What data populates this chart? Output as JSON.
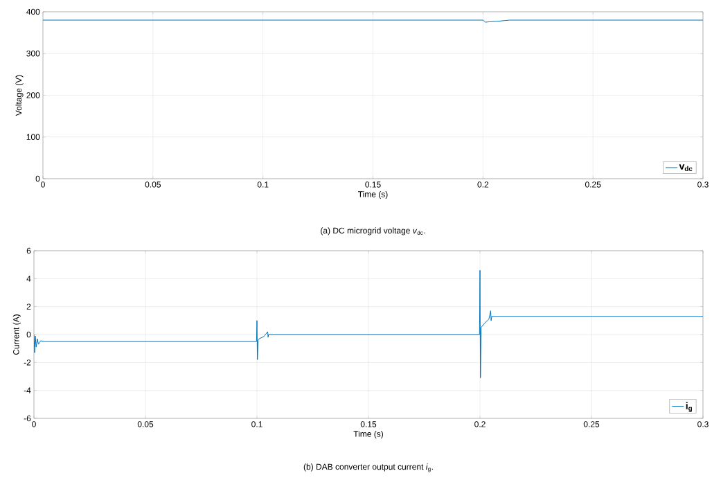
{
  "chart_data": [
    {
      "type": "line",
      "title": "(a) DC microgrid voltage *v*$_{dc}$.",
      "xlabel": "Time (s)",
      "ylabel": "Voltage (V)",
      "xlim": [
        0,
        0.3
      ],
      "ylim": [
        0,
        400
      ],
      "xticks": [
        0,
        0.05,
        0.1,
        0.15,
        0.2,
        0.25,
        0.3
      ],
      "yticks": [
        0,
        100,
        200,
        300,
        400
      ],
      "grid": true,
      "legend": "bottom right",
      "series": [
        {
          "name": "v$_{dc}$",
          "color": "#0072bd",
          "x": [
            0,
            0.2,
            0.2005,
            0.201,
            0.203,
            0.206,
            0.21,
            0.212,
            0.3
          ],
          "values": [
            380,
            380,
            378,
            375,
            376,
            377,
            379,
            380,
            380
          ]
        }
      ]
    },
    {
      "type": "line",
      "title": "(b) DAB converter output current *i*$_{g}$.",
      "xlabel": "Time (s)",
      "ylabel": "Current (A)",
      "xlim": [
        0,
        0.3
      ],
      "ylim": [
        -6,
        6
      ],
      "xticks": [
        0,
        0.05,
        0.1,
        0.15,
        0.2,
        0.25,
        0.3
      ],
      "yticks": [
        -6,
        -4,
        -2,
        0,
        2,
        4,
        6
      ],
      "grid": true,
      "legend": "bottom right",
      "series": [
        {
          "name": "i$_{g}$",
          "color": "#0072bd",
          "x": [
            0,
            0.0003,
            0.0006,
            0.001,
            0.0015,
            0.002,
            0.003,
            0.005,
            0.0998,
            0.1,
            0.1002,
            0.1005,
            0.101,
            0.103,
            0.1048,
            0.105,
            0.1052,
            0.106,
            0.1998,
            0.2,
            0.2002,
            0.2005,
            0.202,
            0.204,
            0.2048,
            0.205,
            0.2053,
            0.207,
            0.3
          ],
          "values": [
            0,
            -1.3,
            -0.1,
            -0.9,
            -0.3,
            -0.7,
            -0.45,
            -0.5,
            -0.5,
            1.0,
            -1.8,
            -0.4,
            -0.3,
            -0.15,
            0.2,
            -0.2,
            0,
            0,
            0,
            4.6,
            -3.1,
            0.5,
            0.8,
            1.1,
            1.7,
            1.0,
            1.3,
            1.3,
            1.3
          ]
        }
      ]
    }
  ]
}
